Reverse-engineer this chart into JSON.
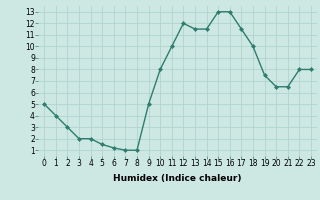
{
  "x": [
    0,
    1,
    2,
    3,
    4,
    5,
    6,
    7,
    8,
    9,
    10,
    11,
    12,
    13,
    14,
    15,
    16,
    17,
    18,
    19,
    20,
    21,
    22,
    23
  ],
  "y": [
    5.0,
    4.0,
    3.0,
    2.0,
    2.0,
    1.5,
    1.2,
    1.0,
    1.0,
    5.0,
    8.0,
    10.0,
    12.0,
    11.5,
    11.5,
    13.0,
    13.0,
    11.5,
    10.0,
    7.5,
    6.5,
    6.5,
    8.0,
    8.0
  ],
  "line_color": "#2e7d6e",
  "marker": "D",
  "marker_size": 2.0,
  "xlabel": "Humidex (Indice chaleur)",
  "xlim": [
    -0.5,
    23.5
  ],
  "ylim": [
    0.5,
    13.5
  ],
  "yticks": [
    1,
    2,
    3,
    4,
    5,
    6,
    7,
    8,
    9,
    10,
    11,
    12,
    13
  ],
  "xticks": [
    0,
    1,
    2,
    3,
    4,
    5,
    6,
    7,
    8,
    9,
    10,
    11,
    12,
    13,
    14,
    15,
    16,
    17,
    18,
    19,
    20,
    21,
    22,
    23
  ],
  "bg_color": "#cde8e3",
  "grid_color": "#b0d4cf",
  "tick_fontsize": 5.5,
  "xlabel_fontsize": 6.5,
  "linewidth": 1.0
}
